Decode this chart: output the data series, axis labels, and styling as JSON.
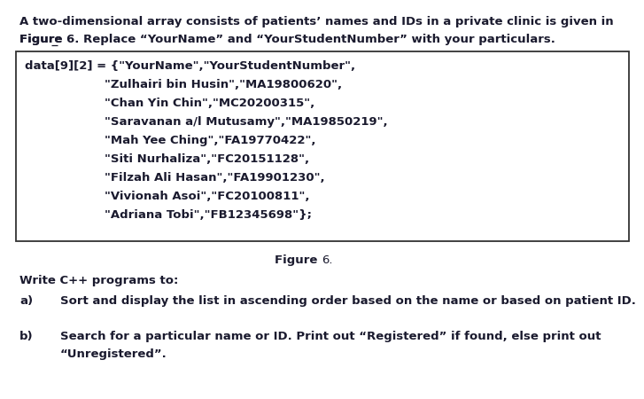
{
  "bg_color": "#ffffff",
  "text_color": "#1a1a2e",
  "font_family": "DejaVu Sans",
  "body_fontsize": 9.5,
  "code_fontsize": 9.5,
  "intro_line1": "A two-dimensional array consists of patients’ names and IDs in a private clinic is given in",
  "intro_line2a": "Figure ",
  "intro_line2b": "6",
  "intro_line2c": ". Replace “YourName” and “YourStudentNumber” with your particulars.",
  "code_line0": "data[9][2] = {\"YourName\",\"YourStudentNumber\",",
  "code_lines": [
    "\"Zulhairi bin Husin\",\"MA19800620\",",
    "\"Chan Yin Chin\",\"MC20200315\",",
    "\"Saravanan a/l Mutusamy\",\"MA19850219\",",
    "\"Mah Yee Ching\",\"FA19770422\",",
    "\"Siti Nurhaliza\",\"FC20151128\",",
    "\"Filzah Ali Hasan\",\"FA19901230\",",
    "\"Vivionah Asoi\",\"FC20100811\",",
    "\"Adriana Tobi\",\"FB12345698\"};"
  ],
  "fig_caption_bold": "Figure ",
  "fig_caption_num": "6.",
  "write_cpp": "Write C++ programs to:",
  "part_a_label": "a)",
  "part_a_text": "Sort and display the list in ascending order based on the name or based on patient ID.",
  "part_b_label": "b)",
  "part_b_line1": "Search for a particular name or ID. Print out “Registered” if found, else print out",
  "part_b_line2": "“Unregistered”."
}
